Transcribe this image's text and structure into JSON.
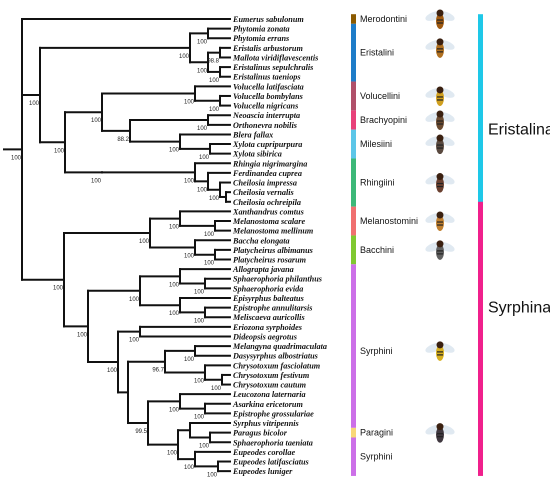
{
  "taxa": [
    "Eumerus sabulonum",
    "Phytomia zonata",
    "Phytomia errans",
    "Eristalis arbustorum",
    "Mallota viridiflavescentis",
    "Eristalinus sepulchralis",
    "Eristalinus taeniops",
    "Volucella latifasciata",
    "Volucella bombylans",
    "Volucella nigricans",
    "Neoascia interrupta",
    "Orthonevra nobilis",
    "Blera fallax",
    "Xylota cupripurpura",
    "Xylota sibirica",
    "Rhingia nigrimargina",
    "Ferdinandea cuprea",
    "Cheilosia impressa",
    "Cheilosia vernalis",
    "Cheilosia ochreipila",
    "Xanthandrus comtus",
    "Melanostoma scalare",
    "Melanostoma mellinum",
    "Baccha elongata",
    "Platycheirus albimanus",
    "Platycheirus rosarum",
    "Allograpta javana",
    "Sphaerophoria philanthus",
    "Sphaerophoria evida",
    "Episyrphus balteatus",
    "Epistrophe annulitarsis",
    "Meliscaeva auricollis",
    "Eriozona syrphoides",
    "Dideopsis aegrotus",
    "Melangyna quadrimaculata",
    "Dasysyrphus albostriatus",
    "Chrysotoxum fasciolatum",
    "Chrysotoxum festivum",
    "Chrysotoxum cautum",
    "Leucozona laternaria",
    "Asarkina ericetorum",
    "Epistrophe grossulariae",
    "Syrphus vitripennis",
    "Paragus bicolor",
    "Sphaerophoria taeniata",
    "Eupeodes corollae",
    "Eupeodes latifasciatus",
    "Eupeodes luniger"
  ],
  "support_values": {
    "root": "100",
    "phytomia": "100",
    "eristalini": "100",
    "eristalinus": "100",
    "eristalis_mallota": "98.8",
    "eristalis_mallota_eristalinus": "100",
    "volucella_inner": "100",
    "volucellini": "100",
    "brachyopini": "100",
    "xylota": "100",
    "milesiini": "100",
    "blera_brachyopini": "88.2",
    "milesiini_brachyopini": "100",
    "eristalinae_core": "100",
    "eristalinae": "100",
    "cheilosia_inner": "100",
    "cheilosia": "100",
    "rhingiini_inner": "100",
    "rhingiini": "100",
    "melanostoma": "100",
    "melanostomini": "100",
    "platycheirus": "100",
    "bacchini": "100",
    "melano_bacchini": "100",
    "syrphinae": "100",
    "sphaerophoria": "100",
    "allograpta_sph": "100",
    "epistrophe_meliscaeva": "100",
    "episyrphus_group": "100",
    "grp_a": "100",
    "eriozona_dideopsis": "100",
    "chrysotoxum_inner": "100",
    "chrysotoxum": "100",
    "melangyna_dasysyrphus": "100",
    "melangyna_chrysotoxum": "96.7",
    "asarkina_epistrophe": "100",
    "leucozona_group": "100",
    "paragus_sph": "100",
    "eupeodes_inner": "100",
    "eupeodes": "100",
    "syrphus_group": "100",
    "leucozona_syrphus": "99.5",
    "mid_syrphini": "100",
    "all_syrphini": "100"
  },
  "tribes": [
    {
      "name": "Merodontini",
      "color": "#8B5A00"
    },
    {
      "name": "Eristalini",
      "color": "#1E7CC8"
    },
    {
      "name": "Volucellini",
      "color": "#B0506A"
    },
    {
      "name": "Brachyopini",
      "color": "#E8417A"
    },
    {
      "name": "Milesiini",
      "color": "#5CC6E8"
    },
    {
      "name": "Rhingiini",
      "color": "#3CB878"
    },
    {
      "name": "Melanostomini",
      "color": "#F07070"
    },
    {
      "name": "Bacchini",
      "color": "#80C830"
    },
    {
      "name": "Syrphini",
      "color": "#CC70E8"
    },
    {
      "name": "Paragini",
      "color": "#F8D878"
    },
    {
      "name": "Syrphini",
      "color": "#CC70E8"
    }
  ],
  "subfamilies": [
    {
      "name": "Eristalinae",
      "color": "#1EC8E8"
    },
    {
      "name": "Syrphinae",
      "color": "#F0208C"
    }
  ],
  "icons": [
    "hoverfly-merodontini-icon",
    "hoverfly-eristalini-icon",
    "hoverfly-volucellini-icon",
    "hoverfly-brachyopini-icon",
    "hoverfly-milesiini-icon",
    "hoverfly-rhingiini-icon",
    "hoverfly-melanostomini-icon",
    "hoverfly-bacchini-icon",
    "hoverfly-syrphini-icon",
    "hoverfly-paragini-icon"
  ]
}
